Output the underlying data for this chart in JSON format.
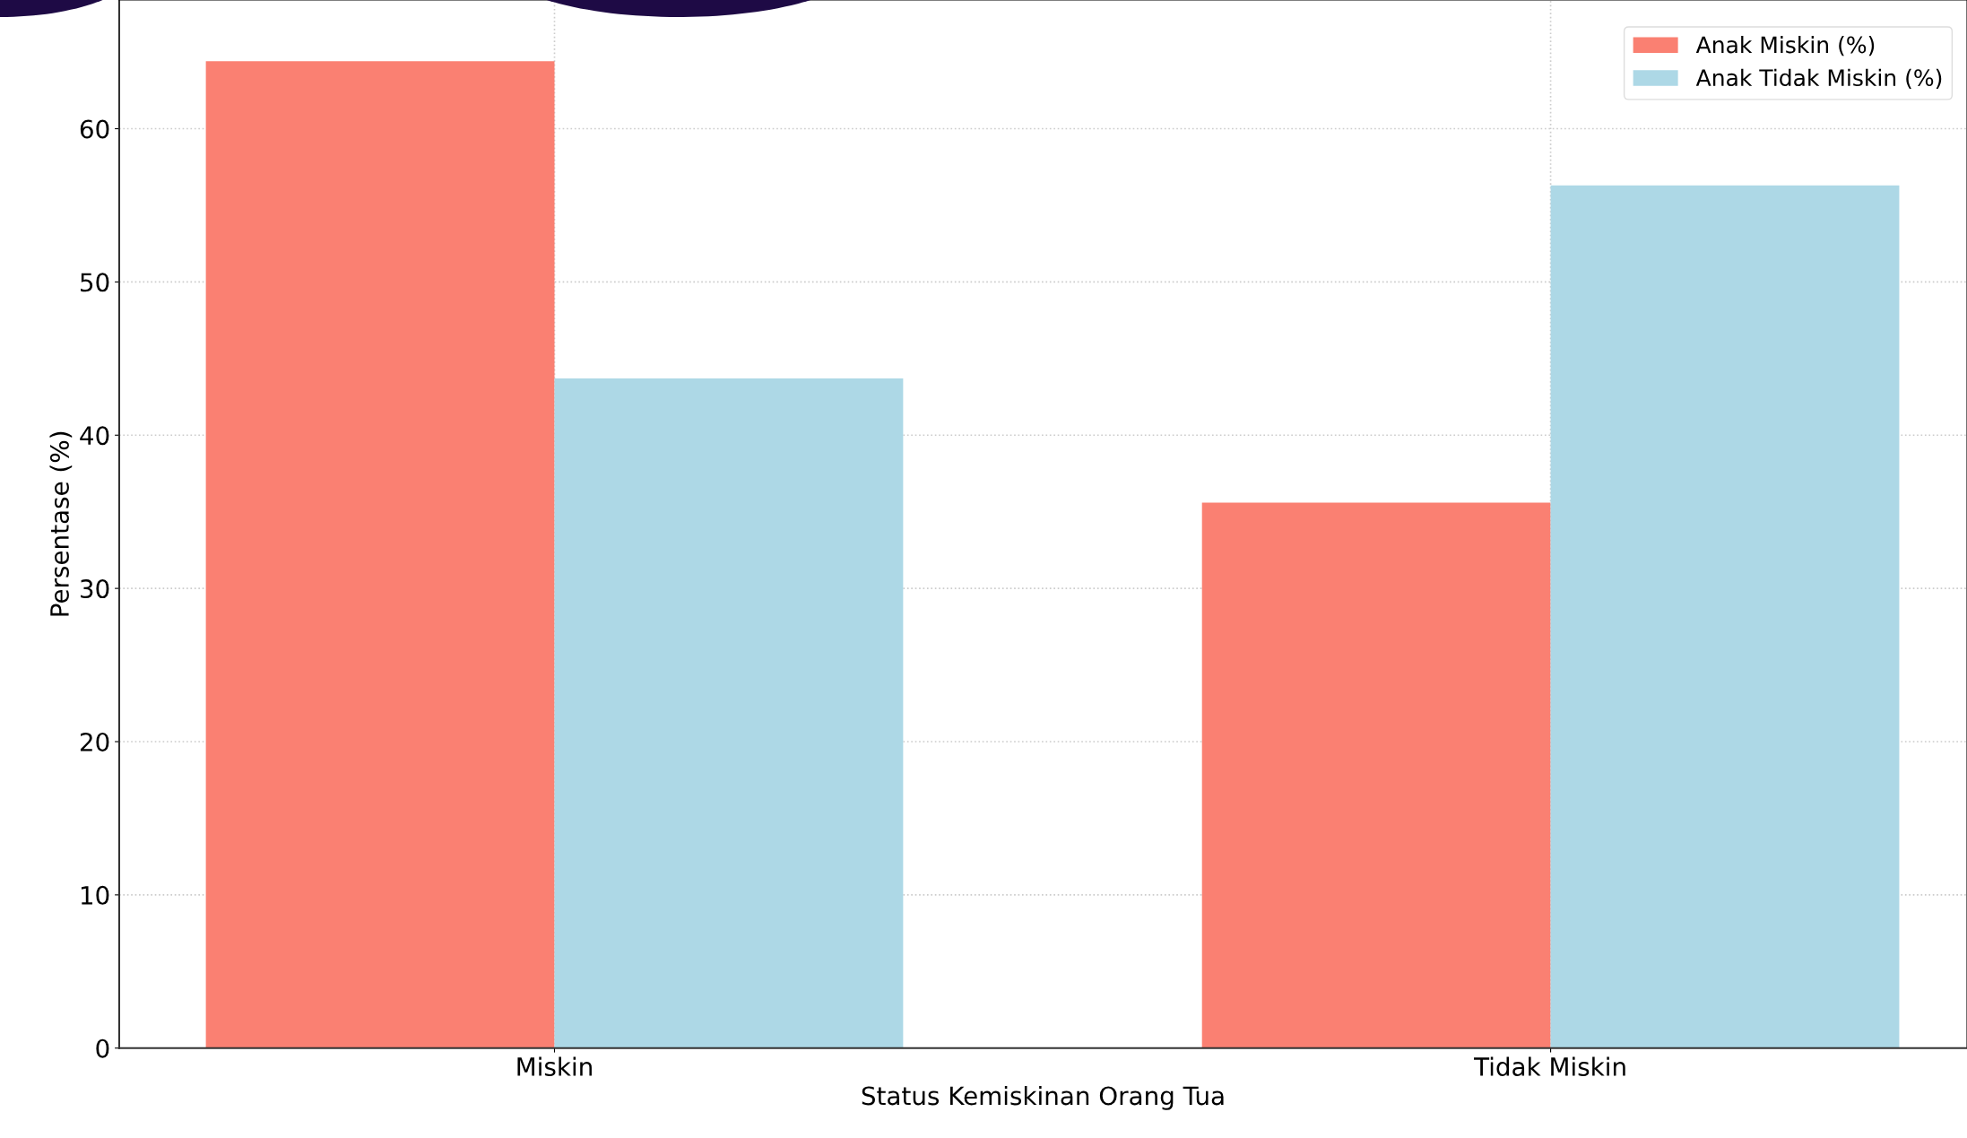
{
  "chart_data": {
    "type": "bar",
    "xlabel": "Status Kemiskinan Orang Tua",
    "ylabel": "Persentase (%)",
    "categories": [
      "Miskin",
      "Tidak Miskin"
    ],
    "series": [
      {
        "name": "Anak Miskin (%)",
        "color": "#fa8072",
        "values": [
          64.4,
          35.6
        ]
      },
      {
        "name": "Anak Tidak Miskin (%)",
        "color": "#add8e6",
        "values": [
          43.7,
          56.3
        ]
      }
    ],
    "ylim": [
      0,
      68.4
    ],
    "yticks": [
      0,
      10,
      20,
      30,
      40,
      50,
      60
    ],
    "grid": true,
    "legend": "top right"
  }
}
